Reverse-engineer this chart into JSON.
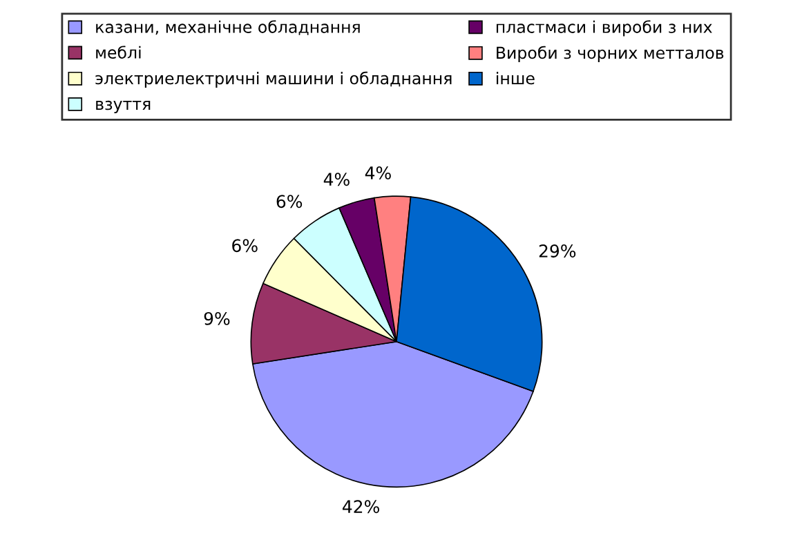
{
  "chart_data": {
    "type": "pie",
    "categories": [
      "казани, механічне обладнання",
      "меблі",
      "электриелектричні машини і обладнання",
      "взуття",
      "пластмаси і вироби з них",
      "Вироби з чорних метталов",
      "інше"
    ],
    "values": [
      42,
      9,
      6,
      6,
      4,
      4,
      29
    ],
    "colors": [
      "#9999ff",
      "#993366",
      "#ffffcc",
      "#ccffff",
      "#660066",
      "#ff8080",
      "#0066cc"
    ],
    "value_labels": [
      "42%",
      "9%",
      "6%",
      "6%",
      "4%",
      "4%",
      "29%"
    ],
    "legend": "top"
  }
}
